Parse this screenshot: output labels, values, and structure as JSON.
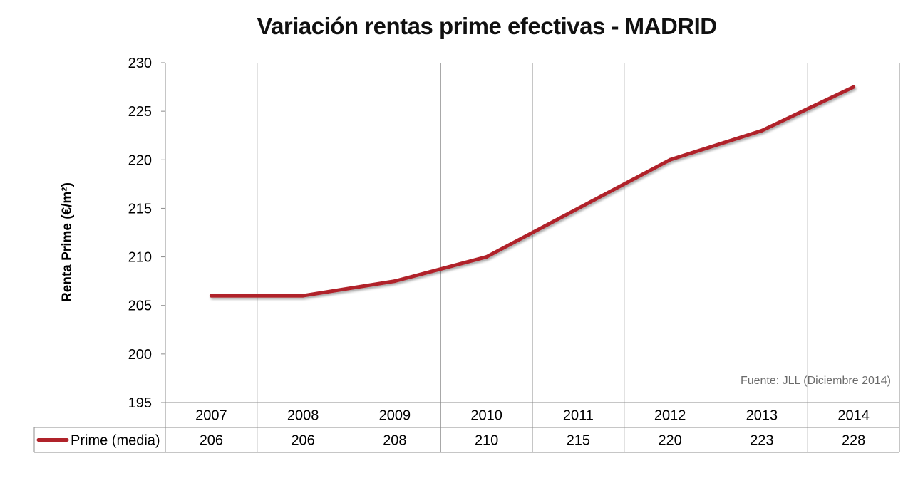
{
  "chart_data": {
    "type": "line",
    "title": "Variación rentas prime efectivas - MADRID",
    "ylabel": "Renta Prime (€/m²)",
    "xlabel": "",
    "categories": [
      "2007",
      "2008",
      "2009",
      "2010",
      "2011",
      "2012",
      "2013",
      "2014"
    ],
    "series": [
      {
        "name": "Prime (media)",
        "values": [
          206,
          206,
          207.5,
          210,
          215,
          220,
          223,
          227.5
        ],
        "table_values": [
          "206",
          "206",
          "208",
          "210",
          "215",
          "220",
          "223",
          "228"
        ],
        "color": "#b0232a"
      }
    ],
    "ylim": [
      195,
      230
    ],
    "yticks": [
      "195",
      "200",
      "205",
      "210",
      "215",
      "220",
      "225",
      "230"
    ],
    "grid": "vertical",
    "data_table": true,
    "annotation": "Fuente: JLL (Diciembre 2014)",
    "colors": {
      "series_line": "#b0232a",
      "gridline": "#8c8c8c",
      "table_border": "#8c8c8c",
      "annotation": "#6b6b6b"
    }
  }
}
